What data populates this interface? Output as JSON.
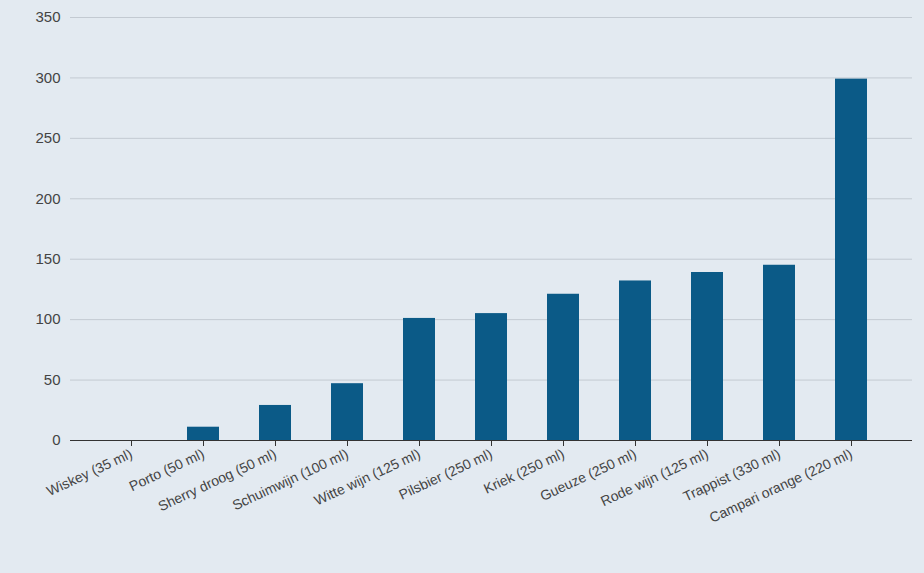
{
  "chart_data": {
    "type": "bar",
    "categories": [
      "Wiskey (35 ml)",
      "Porto (50 ml)",
      "Sherry droog (50 ml)",
      "Schuimwijn (100 ml)",
      "Witte wijn (125 ml)",
      "Pilsbier (250 ml)",
      "Kriek (250 ml)",
      "Gueuze (250 ml)",
      "Rode wijn (125 ml)",
      "Trappist (330 ml)",
      "Campari orange (220 ml)"
    ],
    "values": [
      0,
      11,
      29,
      47,
      101,
      105,
      121,
      132,
      139,
      145,
      299
    ],
    "color": "#0b5a87",
    "ylim": [
      0,
      350
    ],
    "yticks": [
      0,
      50,
      100,
      150,
      200,
      250,
      300,
      350
    ],
    "grid": true
  }
}
